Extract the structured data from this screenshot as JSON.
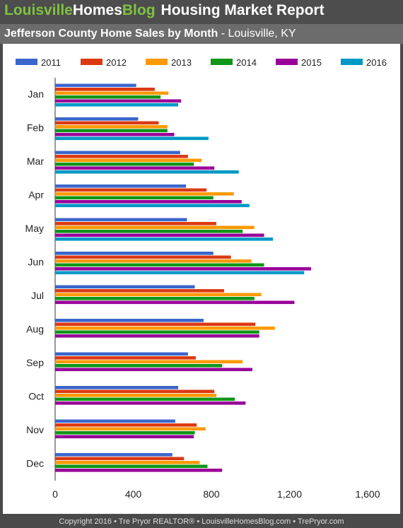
{
  "header": {
    "brand_part1": "Louisville",
    "brand_part2": "Homes",
    "brand_part3": "Blog",
    "report_title": "Housing Market Report",
    "subtitle_bold": "Jefferson County Home Sales by Month",
    "subtitle_rest": " - Louisville, KY"
  },
  "footer": {
    "text": "Copyright 2016 • Tre Pryor REALTOR® • LouisvilleHomesBlog.com • TrePryor.com"
  },
  "colors": {
    "header_bg": "#4d4d4d",
    "brand_green": "#7fc241",
    "series": [
      "#3a66cc",
      "#dc3912",
      "#ff9900",
      "#109618",
      "#990099",
      "#0099c6"
    ]
  },
  "chart_data": {
    "type": "bar",
    "orientation": "horizontal",
    "categories": [
      "Jan",
      "Feb",
      "Mar",
      "Apr",
      "May",
      "Jun",
      "Jul",
      "Aug",
      "Sep",
      "Oct",
      "Nov",
      "Dec"
    ],
    "series": [
      {
        "name": "2011",
        "values": [
          415,
          425,
          640,
          670,
          675,
          810,
          715,
          760,
          680,
          630,
          615,
          600
        ]
      },
      {
        "name": "2012",
        "values": [
          510,
          530,
          680,
          775,
          825,
          900,
          865,
          1025,
          720,
          815,
          725,
          660
        ]
      },
      {
        "name": "2013",
        "values": [
          580,
          575,
          750,
          915,
          1020,
          1005,
          1055,
          1125,
          960,
          825,
          770,
          740
        ]
      },
      {
        "name": "2014",
        "values": [
          540,
          575,
          710,
          810,
          960,
          1070,
          1020,
          1045,
          855,
          920,
          715,
          780
        ]
      },
      {
        "name": "2015",
        "values": [
          645,
          610,
          815,
          955,
          1070,
          1310,
          1225,
          1045,
          1010,
          975,
          710,
          855
        ]
      },
      {
        "name": "2016",
        "values": [
          630,
          785,
          940,
          995,
          1115,
          1275,
          null,
          null,
          null,
          null,
          null,
          null
        ]
      }
    ],
    "xticks": [
      "0",
      "400",
      "800",
      "1,200",
      "1,600"
    ],
    "xlim": [
      0,
      1600
    ],
    "legend_position": "top",
    "grid": false
  }
}
